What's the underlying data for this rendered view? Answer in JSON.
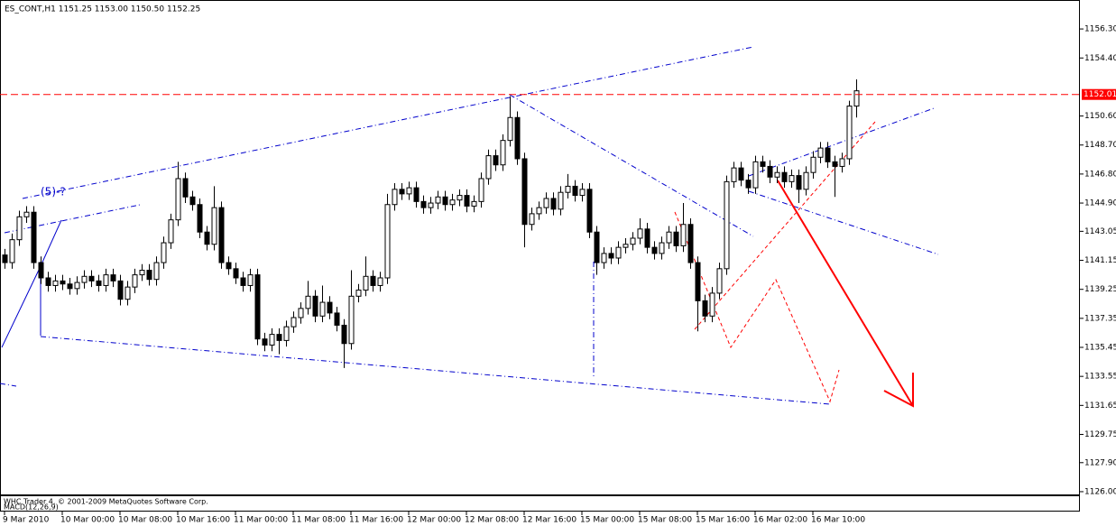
{
  "chart_data": {
    "type": "candlestick",
    "title": "ES_CONT,H1  1151.25 1153.00 1150.50 1152.25",
    "annotation": "(5)-?",
    "footer": "WHC Trader 4, © 2001-2009 MetaQuotes Software Corp.",
    "indicator": "MACD(12,26,9)",
    "up_color": "#ffffff",
    "down_color": "#000000",
    "price_line": 1152.01,
    "price_line_color": "#ff0000",
    "xlim": [
      -0.625,
      149
    ],
    "xticks": [
      {
        "value": 0,
        "label": "9 Mar 2010"
      },
      {
        "value": 8,
        "label": "10 Mar 00:00"
      },
      {
        "value": 16,
        "label": "10 Mar 08:00"
      },
      {
        "value": 24,
        "label": "10 Mar 16:00"
      },
      {
        "value": 32,
        "label": "11 Mar 00:00"
      },
      {
        "value": 40,
        "label": "11 Mar 08:00"
      },
      {
        "value": 48,
        "label": "11 Mar 16:00"
      },
      {
        "value": 56,
        "label": "12 Mar 00:00"
      },
      {
        "value": 64,
        "label": "12 Mar 08:00"
      },
      {
        "value": 72,
        "label": "12 Mar 16:00"
      },
      {
        "value": 80,
        "label": "15 Mar 00:00"
      },
      {
        "value": 88,
        "label": "15 Mar 08:00"
      },
      {
        "value": 96,
        "label": "15 Mar 16:00"
      },
      {
        "value": 104,
        "label": "16 Mar 02:00"
      },
      {
        "value": 112,
        "label": "16 Mar 10:00"
      }
    ],
    "ylim": [
      1125.82,
      1157.96
    ],
    "yticks": [
      {
        "value": 1156.3,
        "label": "1156.30"
      },
      {
        "value": 1154.4,
        "label": "1154.40"
      },
      {
        "value": 1150.6,
        "label": "1150.60"
      },
      {
        "value": 1148.7,
        "label": "1148.70"
      },
      {
        "value": 1146.8,
        "label": "1146.80"
      },
      {
        "value": 1144.9,
        "label": "1144.90"
      },
      {
        "value": 1143.05,
        "label": "1143.05"
      },
      {
        "value": 1141.15,
        "label": "1141.15"
      },
      {
        "value": 1139.25,
        "label": "1139.25"
      },
      {
        "value": 1137.35,
        "label": "1137.35"
      },
      {
        "value": 1135.45,
        "label": "1135.45"
      },
      {
        "value": 1133.55,
        "label": "1133.55"
      },
      {
        "value": 1131.65,
        "label": "1131.65"
      },
      {
        "value": 1129.75,
        "label": "1129.75"
      },
      {
        "value": 1127.9,
        "label": "1127.90"
      },
      {
        "value": 1126,
        "label": "1126.00"
      }
    ],
    "candles": [
      [
        1141.5,
        1141.9,
        1140.6,
        1141.0
      ],
      [
        1141.0,
        1142.9,
        1140.6,
        1142.5
      ],
      [
        1142.5,
        1144.4,
        1142.1,
        1144.0
      ],
      [
        1144.0,
        1144.7,
        1143.6,
        1144.3
      ],
      [
        1144.3,
        1144.7,
        1140.6,
        1141.0
      ],
      [
        1141.0,
        1141.4,
        1139.6,
        1140.0
      ],
      [
        1140.0,
        1140.4,
        1139.1,
        1139.5
      ],
      [
        1139.5,
        1140.2,
        1139.1,
        1139.8
      ],
      [
        1139.8,
        1140.2,
        1139.2,
        1139.6
      ],
      [
        1139.6,
        1140.0,
        1138.9,
        1139.3
      ],
      [
        1139.3,
        1140.1,
        1138.9,
        1139.7
      ],
      [
        1139.7,
        1140.5,
        1139.3,
        1140.1
      ],
      [
        1140.1,
        1140.5,
        1139.4,
        1139.8
      ],
      [
        1139.8,
        1140.2,
        1139.1,
        1139.5
      ],
      [
        1139.5,
        1140.6,
        1139.1,
        1140.2
      ],
      [
        1140.2,
        1140.6,
        1139.4,
        1139.8
      ],
      [
        1139.8,
        1140.2,
        1138.2,
        1138.6
      ],
      [
        1138.6,
        1139.8,
        1138.2,
        1139.4
      ],
      [
        1139.4,
        1140.6,
        1139.0,
        1140.2
      ],
      [
        1140.2,
        1140.9,
        1139.8,
        1140.5
      ],
      [
        1140.5,
        1140.9,
        1139.5,
        1139.9
      ],
      [
        1139.9,
        1141.4,
        1139.5,
        1141.0
      ],
      [
        1141.0,
        1142.7,
        1140.6,
        1142.3
      ],
      [
        1142.3,
        1144.2,
        1141.9,
        1143.8
      ],
      [
        1143.8,
        1147.6,
        1143.4,
        1146.5
      ],
      [
        1146.5,
        1146.9,
        1144.9,
        1145.3
      ],
      [
        1145.3,
        1145.7,
        1144.4,
        1144.8
      ],
      [
        1144.8,
        1145.2,
        1142.6,
        1143.0
      ],
      [
        1143.0,
        1143.4,
        1141.8,
        1142.2
      ],
      [
        1142.2,
        1146.0,
        1141.8,
        1144.6
      ],
      [
        1144.6,
        1145.0,
        1140.6,
        1141.0
      ],
      [
        1141.0,
        1141.4,
        1140.2,
        1140.6
      ],
      [
        1140.6,
        1141.0,
        1139.6,
        1140.0
      ],
      [
        1140.0,
        1140.4,
        1139.1,
        1139.5
      ],
      [
        1139.5,
        1140.6,
        1139.1,
        1140.2
      ],
      [
        1140.2,
        1140.6,
        1135.6,
        1136.0
      ],
      [
        1136.0,
        1136.4,
        1135.2,
        1135.6
      ],
      [
        1135.6,
        1136.7,
        1135.2,
        1136.3
      ],
      [
        1136.3,
        1136.7,
        1135.0,
        1135.9
      ],
      [
        1135.9,
        1137.2,
        1135.5,
        1136.8
      ],
      [
        1136.8,
        1137.8,
        1136.4,
        1137.4
      ],
      [
        1137.4,
        1138.4,
        1137.0,
        1138.0
      ],
      [
        1138.0,
        1139.8,
        1137.6,
        1138.8
      ],
      [
        1138.8,
        1139.2,
        1137.1,
        1137.5
      ],
      [
        1137.5,
        1139.5,
        1137.1,
        1138.4
      ],
      [
        1138.4,
        1138.8,
        1137.3,
        1137.7
      ],
      [
        1137.7,
        1138.1,
        1136.5,
        1136.9
      ],
      [
        1136.9,
        1137.3,
        1134.1,
        1135.7
      ],
      [
        1135.7,
        1140.5,
        1135.3,
        1138.8
      ],
      [
        1138.8,
        1139.6,
        1138.4,
        1139.2
      ],
      [
        1139.2,
        1141.4,
        1138.8,
        1140.1
      ],
      [
        1140.1,
        1140.5,
        1139.1,
        1139.5
      ],
      [
        1139.5,
        1140.4,
        1139.1,
        1140.0
      ],
      [
        1140.0,
        1145.5,
        1139.6,
        1144.8
      ],
      [
        1144.8,
        1146.2,
        1144.4,
        1145.8
      ],
      [
        1145.8,
        1146.2,
        1145.1,
        1145.5
      ],
      [
        1145.5,
        1146.3,
        1145.1,
        1145.9
      ],
      [
        1145.9,
        1146.3,
        1144.6,
        1145.0
      ],
      [
        1145.0,
        1145.4,
        1144.2,
        1144.6
      ],
      [
        1144.6,
        1145.3,
        1144.2,
        1144.9
      ],
      [
        1144.9,
        1145.7,
        1144.5,
        1145.3
      ],
      [
        1145.3,
        1145.7,
        1144.4,
        1144.8
      ],
      [
        1144.8,
        1145.5,
        1144.4,
        1145.1
      ],
      [
        1145.1,
        1145.8,
        1144.7,
        1145.4
      ],
      [
        1145.4,
        1145.8,
        1144.3,
        1144.7
      ],
      [
        1144.7,
        1145.4,
        1144.3,
        1145.0
      ],
      [
        1145.0,
        1146.9,
        1144.6,
        1146.5
      ],
      [
        1146.5,
        1148.4,
        1146.1,
        1148.0
      ],
      [
        1148.0,
        1148.4,
        1147.0,
        1147.4
      ],
      [
        1147.4,
        1149.4,
        1147.0,
        1149.0
      ],
      [
        1149.0,
        1151.9,
        1148.6,
        1150.5
      ],
      [
        1150.5,
        1150.9,
        1147.4,
        1147.8
      ],
      [
        1147.8,
        1148.2,
        1142.0,
        1143.5
      ],
      [
        1143.5,
        1144.6,
        1143.1,
        1144.2
      ],
      [
        1144.2,
        1145.0,
        1143.8,
        1144.6
      ],
      [
        1144.6,
        1145.6,
        1144.2,
        1145.2
      ],
      [
        1145.2,
        1145.6,
        1144.1,
        1144.5
      ],
      [
        1144.5,
        1146.0,
        1144.1,
        1145.6
      ],
      [
        1145.6,
        1146.8,
        1145.2,
        1146.0
      ],
      [
        1146.0,
        1146.4,
        1145.0,
        1145.4
      ],
      [
        1145.4,
        1146.2,
        1145.0,
        1145.8
      ],
      [
        1145.8,
        1146.2,
        1142.6,
        1143.0
      ],
      [
        1143.0,
        1143.4,
        1140.2,
        1141.0
      ],
      [
        1141.0,
        1142.0,
        1140.6,
        1141.6
      ],
      [
        1141.6,
        1142.0,
        1140.9,
        1141.3
      ],
      [
        1141.3,
        1142.4,
        1140.9,
        1142.0
      ],
      [
        1142.0,
        1142.6,
        1141.6,
        1142.2
      ],
      [
        1142.2,
        1143.0,
        1141.8,
        1142.6
      ],
      [
        1142.6,
        1143.9,
        1142.2,
        1143.2
      ],
      [
        1143.2,
        1143.6,
        1141.6,
        1142.0
      ],
      [
        1142.0,
        1142.4,
        1141.2,
        1141.6
      ],
      [
        1141.6,
        1142.7,
        1141.2,
        1142.3
      ],
      [
        1142.3,
        1143.4,
        1141.9,
        1143.0
      ],
      [
        1143.0,
        1143.4,
        1141.7,
        1142.1
      ],
      [
        1142.1,
        1144.9,
        1141.7,
        1143.5
      ],
      [
        1143.5,
        1143.9,
        1140.6,
        1141.0
      ],
      [
        1141.0,
        1141.4,
        1136.5,
        1138.5
      ],
      [
        1138.5,
        1138.9,
        1137.1,
        1137.5
      ],
      [
        1137.5,
        1139.4,
        1137.1,
        1139.0
      ],
      [
        1139.0,
        1141.0,
        1138.6,
        1140.6
      ],
      [
        1140.6,
        1146.7,
        1140.2,
        1146.3
      ],
      [
        1146.3,
        1147.6,
        1145.9,
        1147.2
      ],
      [
        1147.2,
        1147.6,
        1146.0,
        1146.4
      ],
      [
        1146.4,
        1146.8,
        1145.5,
        1145.9
      ],
      [
        1145.9,
        1148.0,
        1145.5,
        1147.6
      ],
      [
        1147.6,
        1148.0,
        1146.9,
        1147.3
      ],
      [
        1147.3,
        1147.7,
        1146.2,
        1146.6
      ],
      [
        1146.6,
        1147.3,
        1146.2,
        1146.9
      ],
      [
        1146.9,
        1147.3,
        1145.9,
        1146.3
      ],
      [
        1146.3,
        1147.1,
        1145.9,
        1146.7
      ],
      [
        1146.7,
        1147.1,
        1144.9,
        1145.8
      ],
      [
        1145.8,
        1147.3,
        1145.4,
        1146.9
      ],
      [
        1146.9,
        1148.3,
        1146.5,
        1147.9
      ],
      [
        1147.9,
        1148.9,
        1147.5,
        1148.5
      ],
      [
        1148.5,
        1148.9,
        1147.2,
        1147.6
      ],
      [
        1147.6,
        1148.0,
        1145.3,
        1147.3
      ],
      [
        1147.3,
        1148.2,
        1146.9,
        1147.8
      ],
      [
        1147.8,
        1151.6,
        1147.4,
        1151.25
      ],
      [
        1151.25,
        1153.0,
        1150.5,
        1152.25
      ]
    ]
  }
}
